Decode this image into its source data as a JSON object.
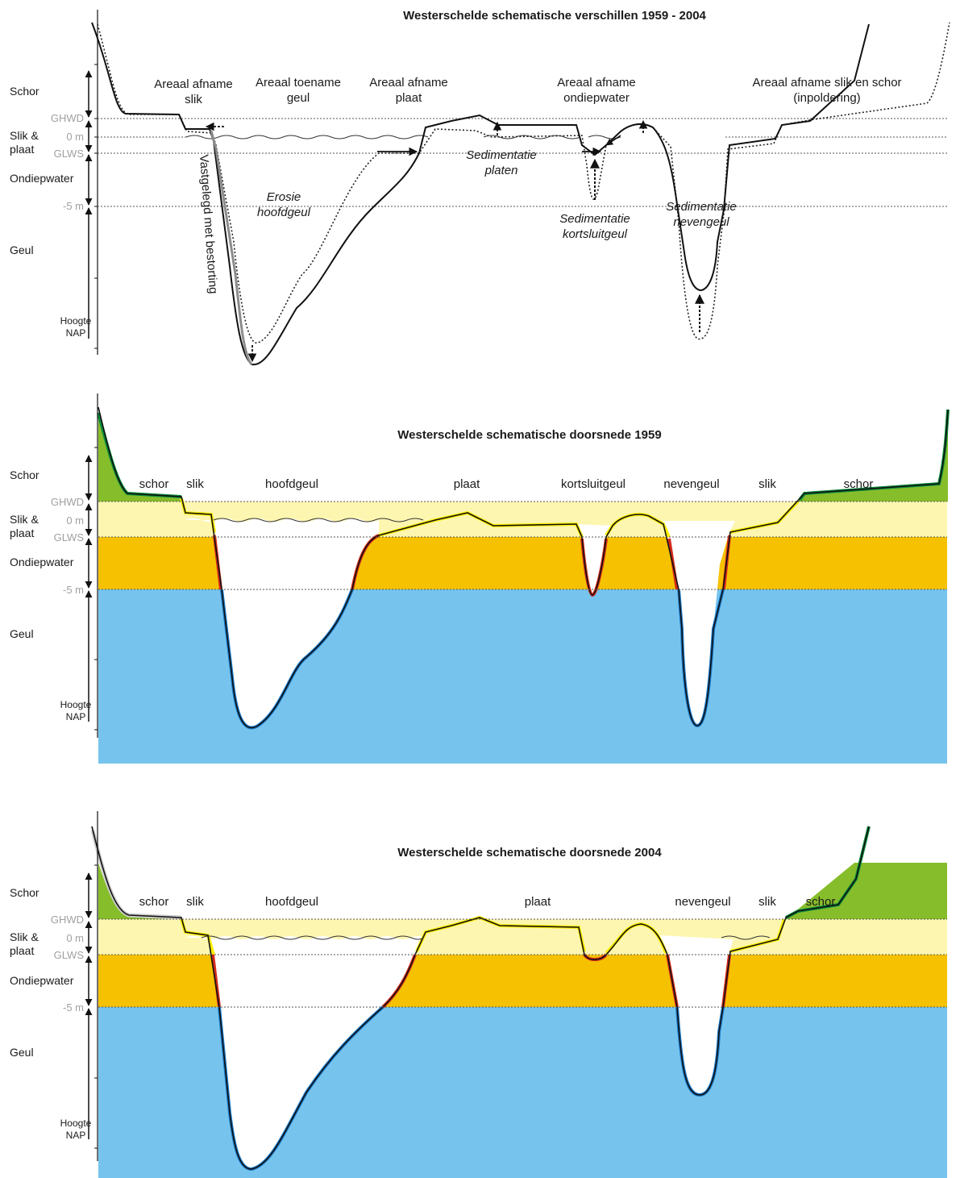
{
  "colors": {
    "schor": "#86bd2a",
    "slik": "#fdf6b0",
    "ondiepwater": "#f5c100",
    "geul": "#76c4ee",
    "schor_edge": "#0a8a3a",
    "plaat_edge": "#ffee00",
    "ondiep_edge": "#d42a1a",
    "geul_edge": "#1878c8"
  },
  "axis": {
    "schor": "Schor",
    "slik1": "Slik &",
    "slik2": "plaat",
    "ondiepwater": "Ondiepwater",
    "geul": "Geul",
    "hoogte": "Hoogte",
    "nap": "NAP",
    "ghwd": "GHWD",
    "zero": "0 m",
    "glws": "GLWS",
    "minus5": "-5 m"
  },
  "panel1": {
    "title": "Westerschelde schematische verschillen 1959 - 2004",
    "labels": {
      "afname_slik_1": "Areaal afname",
      "afname_slik_2": "slik",
      "toename_geul_1": "Areaal toename",
      "toename_geul_2": "geul",
      "afname_plaat_1": "Areaal afname",
      "afname_plaat_2": "plaat",
      "afname_ondiep_1": "Areaal afname",
      "afname_ondiep_2": "ondiepwater",
      "afname_schor_1": "Areaal afname slik en schor",
      "afname_schor_2": "(inpoldering)",
      "vastgelegd": "Vastgelegd met bestorting",
      "erosie_1": "Erosie",
      "erosie_2": "hoofdgeul",
      "sed_platen_1": "Sedimentatie",
      "sed_platen_2": "platen",
      "sed_kort_1": "Sedimentatie",
      "sed_kort_2": "kortsluitgeul",
      "sed_neven_1": "Sedimentatie",
      "sed_neven_2": "nevengeul"
    }
  },
  "panel2": {
    "title": "Westerschelde schematische doorsnede 1959",
    "labels": {
      "schor_l": "schor",
      "slik_l": "slik",
      "hoofdgeul": "hoofdgeul",
      "plaat": "plaat",
      "kortsluitgeul": "kortsluitgeul",
      "nevengeul": "nevengeul",
      "slik_r": "slik",
      "schor_r": "schor"
    }
  },
  "panel3": {
    "title": "Westerschelde schematische doorsnede 2004",
    "labels": {
      "schor_l": "schor",
      "slik_l": "slik",
      "hoofdgeul": "hoofdgeul",
      "plaat": "plaat",
      "nevengeul": "nevengeul",
      "slik_r": "slik",
      "schor_r": "schor"
    }
  }
}
